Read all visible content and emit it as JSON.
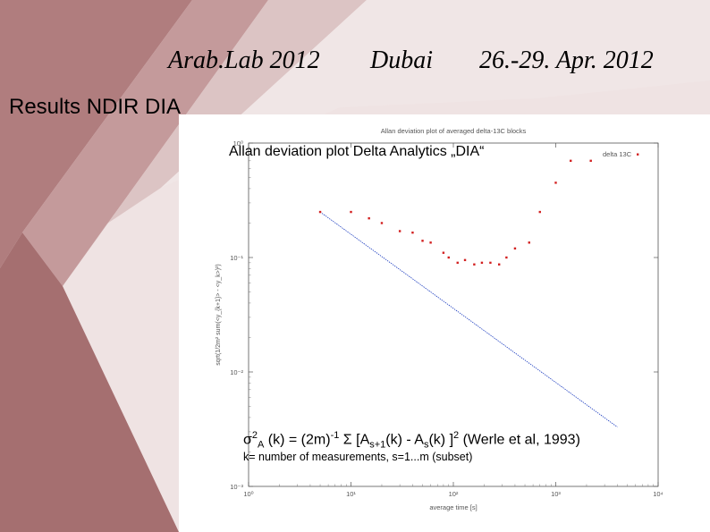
{
  "header": {
    "event": "Arab.Lab 2012",
    "city": "Dubai",
    "dates": "26.-29. Apr. 2012"
  },
  "slide_title": "Results NDIR DIA",
  "overlay_title": "Allan deviation plot Delta Analytics „DIA“",
  "formula": {
    "sigma": "σ",
    "sigma_exp": "2",
    "sigma_sub": "A",
    "lhs": " (k) = (2m)",
    "lhs_exp": "-1",
    "sum": " Σ [A",
    "sub1": "s+1",
    "mid": "(k) - A",
    "sub2": "s",
    "close": "(k) ]",
    "close_exp": "2",
    "citation": " (Werle et al, 1993)",
    "note": "k= number of measurements, s=1...m (subset)"
  },
  "colors": {
    "background": "#ffffff",
    "texture_light": "#e6d6d6",
    "texture_dark": "#a56f70",
    "measured_series": "#d22020",
    "reference_line": "#2040c0"
  },
  "chart_data": {
    "type": "scatter",
    "title": "Allan deviation plot of averaged delta-13C blocks",
    "xlabel": "average time [s]",
    "ylabel": "sqrt(1/2m² sum(<y_{k+1}> - <y_k>)²)",
    "x_scale": "log",
    "y_scale": "log",
    "xlim": [
      1,
      10000
    ],
    "ylim": [
      0.001,
      1
    ],
    "x_ticks": [
      1,
      10,
      100,
      1000,
      10000
    ],
    "x_tick_labels": [
      "10⁰",
      "10¹",
      "10²",
      "10³",
      "10⁴"
    ],
    "y_ticks": [
      1,
      0.1,
      0.01,
      0.001
    ],
    "y_tick_labels": [
      "10⁰",
      "10⁻¹",
      "10⁻²",
      "10⁻³"
    ],
    "grid": false,
    "legend_position": "top-right",
    "series": [
      {
        "name": "delta 13C",
        "marker": "point",
        "x": [
          5,
          10,
          15,
          20,
          30,
          40,
          50,
          60,
          80,
          90,
          110,
          130,
          160,
          190,
          230,
          280,
          330,
          400,
          550,
          700,
          1000,
          1400,
          2200
        ],
        "y": [
          0.25,
          0.25,
          0.22,
          0.2,
          0.17,
          0.165,
          0.14,
          0.135,
          0.11,
          0.1,
          0.09,
          0.095,
          0.087,
          0.09,
          0.09,
          0.087,
          0.1,
          0.12,
          0.135,
          0.25,
          0.45,
          0.7,
          0.7
        ]
      },
      {
        "name": "",
        "marker": "dashed-line",
        "x": [
          5,
          4000
        ],
        "y": [
          0.25,
          0.0033
        ]
      }
    ]
  }
}
